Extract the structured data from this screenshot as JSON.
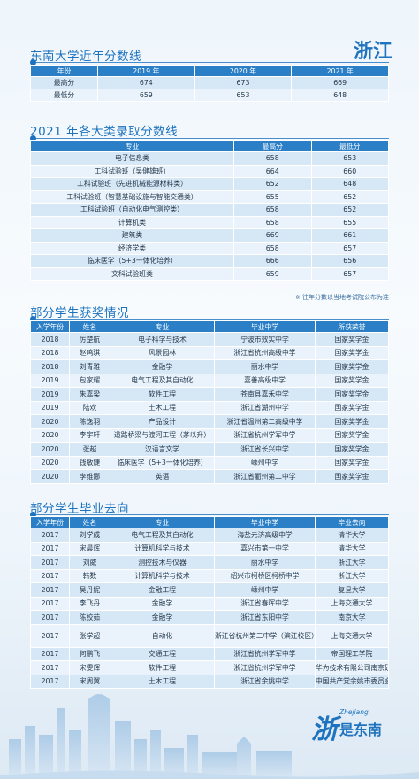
{
  "province": "浙江",
  "sec1": {
    "title": "东南大学近年分数线",
    "headers": [
      "年份",
      "2019 年",
      "2020 年",
      "2021 年"
    ],
    "rows": [
      [
        "最高分",
        "674",
        "673",
        "669"
      ],
      [
        "最低分",
        "659",
        "653",
        "648"
      ]
    ]
  },
  "sec2": {
    "title": "2021 年各大类录取分数线",
    "headers": [
      "专业",
      "最高分",
      "最低分"
    ],
    "rows": [
      [
        "电子信息类",
        "658",
        "653"
      ],
      [
        "工科试验班（吴健雄班）",
        "664",
        "660"
      ],
      [
        "工科试验班（先进机械能源材料类）",
        "652",
        "648"
      ],
      [
        "工科试验班（智慧基础设施与智能交通类）",
        "655",
        "652"
      ],
      [
        "工科试验班（自动化电气测控类）",
        "658",
        "652"
      ],
      [
        "计算机类",
        "658",
        "655"
      ],
      [
        "建筑类",
        "669",
        "661"
      ],
      [
        "经济学类",
        "658",
        "657"
      ],
      [
        "临床医学（5+3一体化培养）",
        "666",
        "656"
      ],
      [
        "文科试验班类",
        "659",
        "657"
      ]
    ],
    "note": "※ 往年分数以当地考试院公布为准"
  },
  "sec3": {
    "title": "部分学生获奖情况",
    "headers": [
      "入学年份",
      "姓名",
      "专业",
      "毕业中学",
      "所获荣誉"
    ],
    "rows": [
      [
        "2018",
        "厉楚航",
        "电子科学与技术",
        "宁波市效实中学",
        "国家奖学金"
      ],
      [
        "2018",
        "赵鸣琪",
        "风景园林",
        "浙江省杭州高级中学",
        "国家奖学金"
      ],
      [
        "2018",
        "刘青雅",
        "金融学",
        "丽水中学",
        "国家奖学金"
      ],
      [
        "2019",
        "包家耀",
        "电气工程及其自动化",
        "嘉善高级中学",
        "国家奖学金"
      ],
      [
        "2019",
        "朱嘉梁",
        "软件工程",
        "苍南县嘉禾中学",
        "国家奖学金"
      ],
      [
        "2019",
        "陆欢",
        "土木工程",
        "浙江省湖州中学",
        "国家奖学金"
      ],
      [
        "2020",
        "陈逸羽",
        "产品设计",
        "浙江省温州第二高级中学",
        "国家奖学金"
      ],
      [
        "2020",
        "李宇轩",
        "道路桥梁与渡河工程（茅以升）",
        "浙江省杭州学军中学",
        "国家奖学金"
      ],
      [
        "2020",
        "张越",
        "汉语言文学",
        "浙江省长兴中学",
        "国家奖学金"
      ],
      [
        "2020",
        "钱敏婕",
        "临床医学（5+3一体化培养）",
        "嵊州中学",
        "国家奖学金"
      ],
      [
        "2020",
        "李维娜",
        "英语",
        "浙江省衢州第二中学",
        "国家奖学金"
      ]
    ]
  },
  "sec4": {
    "title": "部分学生毕业去向",
    "headers": [
      "入学年份",
      "姓名",
      "专业",
      "毕业中学",
      "毕业去向"
    ],
    "rows": [
      [
        "2017",
        "刘学成",
        "电气工程及其自动化",
        "海盐元济高级中学",
        "清华大学"
      ],
      [
        "2017",
        "宋晨辉",
        "计算机科学与技术",
        "嘉兴市第一中学",
        "清华大学"
      ],
      [
        "2017",
        "刘威",
        "测控技术与仪器",
        "丽水中学",
        "浙江大学"
      ],
      [
        "2017",
        "韩数",
        "计算机科学与技术",
        "绍兴市柯桥区柯桥中学",
        "浙江大学"
      ],
      [
        "2017",
        "吴丹妮",
        "金融工程",
        "嵊州中学",
        "复旦大学"
      ],
      [
        "2017",
        "李飞丹",
        "金融学",
        "浙江省春晖中学",
        "上海交通大学"
      ],
      [
        "2017",
        "陈姣茹",
        "金融学",
        "浙江省东阳中学",
        "南京大学"
      ],
      [
        "2017",
        "张学超",
        "自动化",
        "浙江省杭州第二中学（滨江校区）",
        "上海交通大学"
      ],
      [
        "2017",
        "何鹏飞",
        "交通工程",
        "浙江省杭州学军中学",
        "帝国理工学院"
      ],
      [
        "2017",
        "宋雯辉",
        "软件工程",
        "浙江省杭州学军中学",
        "华为技术有限公司南京研究所"
      ],
      [
        "2017",
        "宋周翼",
        "土木工程",
        "浙江省余姚中学",
        "中国共产党余姚市委员会组织部"
      ]
    ]
  },
  "logo": {
    "mark": "浙",
    "en": "Zhejiang",
    "cn": "是东南"
  }
}
